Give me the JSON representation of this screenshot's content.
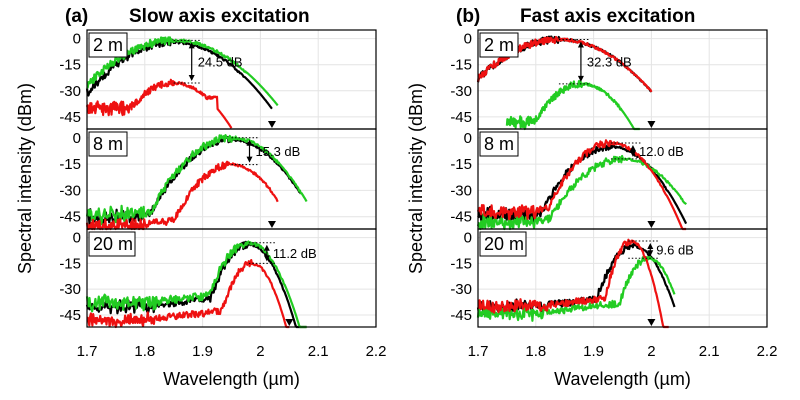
{
  "chart_data": {
    "type": "line",
    "figure": {
      "xlabel": "Wavelength (µm)",
      "ylabel": "Spectral intensity (dBm)",
      "xlim": [
        1.7,
        2.2
      ],
      "xticks": [
        "1.7",
        "1.8",
        "1.9",
        "2",
        "2.1",
        "2.2"
      ],
      "ylim": [
        -52,
        5
      ],
      "yticks": [
        "0",
        "-15",
        "-30",
        "-45"
      ],
      "series_colors": {
        "black": "#000000",
        "green": "#22cc22",
        "red": "#ee1111"
      }
    },
    "panels": [
      {
        "id": "a",
        "label": "(a)",
        "title": "Slow axis excitation",
        "subplots": [
          {
            "fiber_length": "2 m",
            "annotation": "24.5 dB",
            "peak_wavelength": 1.85,
            "edge_wavelength": 2.02,
            "series": [
              {
                "name": "black",
                "peak": -2,
                "center": 1.85,
                "width": 0.07,
                "start": 1.7,
                "end": 2.02,
                "floor": -52,
                "noise": 2.5,
                "lowstart": 1.76,
                "lowend": -30
              },
              {
                "name": "green",
                "peak": -1,
                "center": 1.85,
                "width": 0.075,
                "start": 1.7,
                "end": 2.03,
                "floor": -52,
                "noise": 2.8,
                "lowstart": 1.76,
                "lowend": -28
              },
              {
                "name": "red",
                "peak": -25.5,
                "center": 1.85,
                "width": 0.05,
                "start": 1.7,
                "end": 1.95,
                "floor": -52,
                "noise": 2.5,
                "lowstart": 1.76,
                "lowend": -40
              }
            ]
          },
          {
            "fiber_length": "8 m",
            "annotation": "15.3 dB",
            "peak_wavelength": 1.95,
            "edge_wavelength": 2.02,
            "series": [
              {
                "name": "black",
                "peak": -1,
                "center": 1.95,
                "width": 0.055,
                "start": 1.7,
                "end": 2.07,
                "floor": -52,
                "noise": 2.5,
                "lowstart": 1.78,
                "lowend": -45
              },
              {
                "name": "green",
                "peak": 0,
                "center": 1.95,
                "width": 0.055,
                "start": 1.7,
                "end": 2.08,
                "floor": -52,
                "noise": 3.0,
                "lowstart": 1.78,
                "lowend": -44
              },
              {
                "name": "red",
                "peak": -15.3,
                "center": 1.95,
                "width": 0.045,
                "start": 1.7,
                "end": 2.03,
                "floor": -52,
                "noise": 2.5,
                "lowstart": 1.78,
                "lowend": -50
              }
            ]
          },
          {
            "fiber_length": "20 m",
            "annotation": "11.2 dB",
            "peak_wavelength": 1.98,
            "edge_wavelength": 2.05,
            "series": [
              {
                "name": "black",
                "peak": -4,
                "center": 1.98,
                "width": 0.03,
                "start": 1.7,
                "end": 2.08,
                "floor": -52,
                "noise": 2.5,
                "lowstart": 1.8,
                "lowend": -40
              },
              {
                "name": "green",
                "peak": -3,
                "center": 1.98,
                "width": 0.032,
                "start": 1.7,
                "end": 2.08,
                "floor": -52,
                "noise": 3.0,
                "lowstart": 1.8,
                "lowend": -38
              },
              {
                "name": "red",
                "peak": -15,
                "center": 1.985,
                "width": 0.025,
                "start": 1.7,
                "end": 2.05,
                "floor": -52,
                "noise": 2.5,
                "lowstart": 1.8,
                "lowend": -48
              }
            ]
          }
        ]
      },
      {
        "id": "b",
        "label": "(b)",
        "title": "Fast axis excitation",
        "subplots": [
          {
            "fiber_length": "2 m",
            "annotation": "32.3 dB",
            "peak_wavelength": 1.84,
            "edge_wavelength": 2.0,
            "series": [
              {
                "name": "black",
                "peak": -0.5,
                "center": 1.84,
                "width": 0.075,
                "start": 1.7,
                "end": 2.0,
                "floor": -52,
                "noise": 2.5,
                "lowstart": 1.75,
                "lowend": -40
              },
              {
                "name": "green",
                "peak": -26,
                "center": 1.88,
                "width": 0.045,
                "start": 1.75,
                "end": 1.98,
                "floor": -52,
                "noise": 2.5,
                "lowstart": 1.8,
                "lowend": -48
              },
              {
                "name": "red",
                "peak": -0.5,
                "center": 1.84,
                "width": 0.075,
                "start": 1.7,
                "end": 2.0,
                "floor": -52,
                "noise": 2.5,
                "lowstart": 1.75,
                "lowend": -40
              }
            ]
          },
          {
            "fiber_length": "8 m",
            "annotation": "12.0 dB",
            "peak_wavelength": 1.93,
            "edge_wavelength": 2.0,
            "series": [
              {
                "name": "black",
                "peak": -5,
                "center": 1.93,
                "width": 0.05,
                "start": 1.7,
                "end": 2.06,
                "floor": -52,
                "noise": 2.5,
                "lowstart": 1.78,
                "lowend": -44
              },
              {
                "name": "green",
                "peak": -12,
                "center": 1.95,
                "width": 0.055,
                "start": 1.7,
                "end": 2.06,
                "floor": -52,
                "noise": 2.5,
                "lowstart": 1.78,
                "lowend": -48
              },
              {
                "name": "red",
                "peak": -3,
                "center": 1.93,
                "width": 0.045,
                "start": 1.7,
                "end": 2.06,
                "floor": -52,
                "noise": 2.5,
                "lowstart": 1.78,
                "lowend": -42
              }
            ]
          },
          {
            "fiber_length": "20 m",
            "annotation": "9.6 dB",
            "peak_wavelength": 1.96,
            "edge_wavelength": 2.0,
            "series": [
              {
                "name": "black",
                "peak": -5,
                "center": 1.97,
                "width": 0.03,
                "start": 1.7,
                "end": 2.04,
                "floor": -52,
                "noise": 2.5,
                "lowstart": 1.8,
                "lowend": -40
              },
              {
                "name": "green",
                "peak": -12,
                "center": 1.995,
                "width": 0.025,
                "start": 1.7,
                "end": 2.04,
                "floor": -52,
                "noise": 2.5,
                "lowstart": 1.8,
                "lowend": -44
              },
              {
                "name": "red",
                "peak": -2,
                "center": 1.965,
                "width": 0.02,
                "start": 1.7,
                "end": 2.03,
                "floor": -52,
                "noise": 2.5,
                "lowstart": 1.8,
                "lowend": -40
              }
            ]
          }
        ]
      }
    ]
  }
}
